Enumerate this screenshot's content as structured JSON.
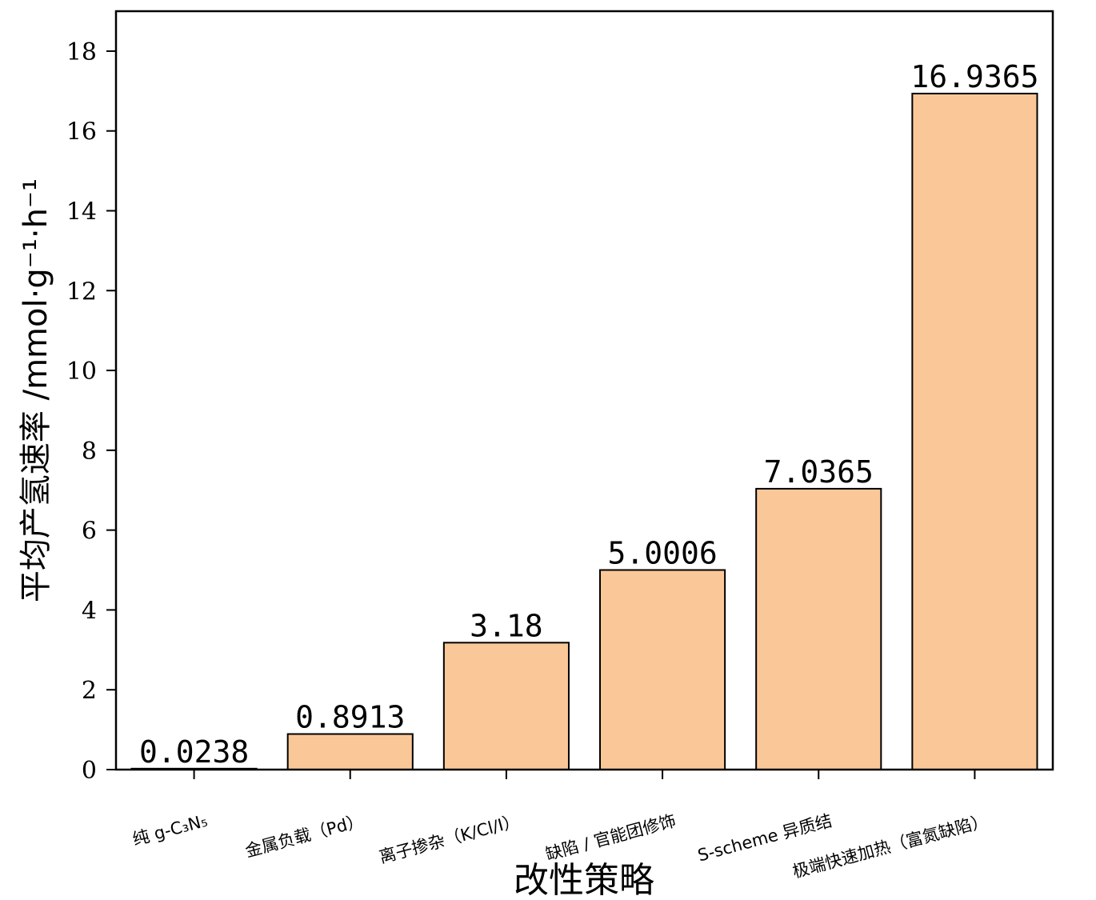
{
  "chart_data": {
    "type": "bar",
    "title": "",
    "xlabel": "改性策略",
    "ylabel": "平均产氢速率 /mmol·g⁻¹·h⁻¹",
    "ylim": [
      0,
      19
    ],
    "yticks": [
      0,
      2,
      4,
      6,
      8,
      10,
      12,
      14,
      16,
      18
    ],
    "categories": [
      "纯 g-C₃N₅",
      "金属负载（Pd）",
      "离子掺杂（K/Cl/I）",
      "缺陷 / 官能团修饰",
      "S-scheme 异质结",
      "极端快速加热（富氮缺陷）"
    ],
    "values": [
      0.0238,
      0.8913,
      3.18,
      5.0006,
      7.0365,
      16.9365
    ],
    "value_labels": [
      "0.0238",
      "0.8913",
      "3.18",
      "5.0006",
      "7.0365",
      "16.9365"
    ],
    "bar_color": "#FAC898",
    "grid": false,
    "legend": "none"
  }
}
